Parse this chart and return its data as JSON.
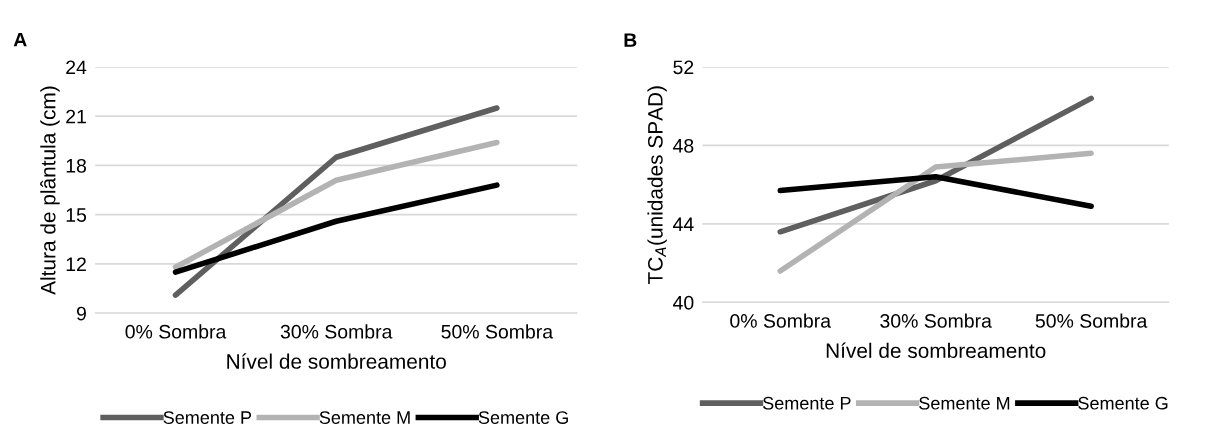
{
  "chart_data": [
    {
      "type": "line",
      "title": "A",
      "xlabel": "Nível de sombreamento",
      "ylabel": "Altura de plântula (cm)",
      "categories": [
        "0% Sombra",
        "30% Sombra",
        "50% Sombra"
      ],
      "series": [
        {
          "name": "Semente P",
          "color": "#5f5f5f",
          "values": [
            10.1,
            18.5,
            21.5
          ]
        },
        {
          "name": "Semente M",
          "color": "#b3b3b3",
          "values": [
            11.8,
            17.1,
            19.4
          ]
        },
        {
          "name": "Semente G",
          "color": "#000000",
          "values": [
            11.5,
            14.6,
            16.8
          ]
        }
      ],
      "ylim": [
        9,
        24
      ],
      "yticks": [
        9,
        12,
        15,
        18,
        21,
        24
      ],
      "grid": "y",
      "legend": "bottom",
      "marker": "none",
      "line_style": "solid"
    },
    {
      "type": "line",
      "title": "B",
      "xlabel": "Nível de sombreamento",
      "ylabel": "TC$_{A}$(unidades SPAD)",
      "categories": [
        "0% Sombra",
        "30% Sombra",
        "50% Sombra"
      ],
      "series": [
        {
          "name": "Semente P",
          "color": "#5f5f5f",
          "values": [
            43.6,
            46.2,
            50.4
          ]
        },
        {
          "name": "Semente M",
          "color": "#b3b3b3",
          "values": [
            41.6,
            46.9,
            47.6
          ]
        },
        {
          "name": "Semente G",
          "color": "#000000",
          "values": [
            45.7,
            46.4,
            44.9
          ]
        }
      ],
      "ylim": [
        40,
        52
      ],
      "yticks": [
        40,
        44,
        48,
        52
      ],
      "grid": "y",
      "legend": "bottom",
      "marker": "none",
      "line_style": "solid"
    }
  ]
}
